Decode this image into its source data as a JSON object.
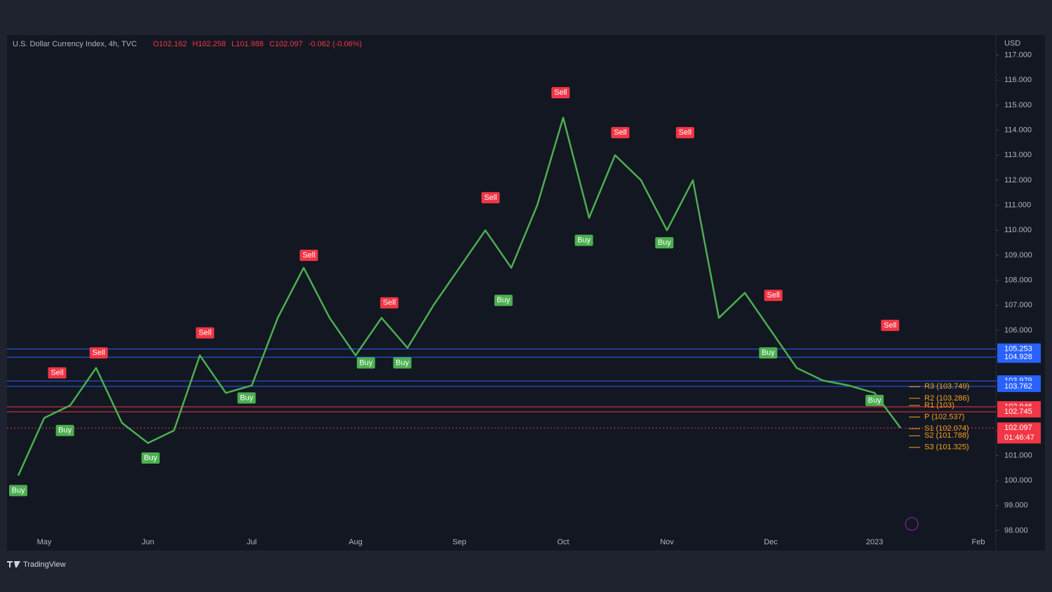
{
  "chart_data": {
    "type": "line",
    "title": "U.S. Dollar Currency Index, 4h, TVC",
    "ohlc": [
      "O102.162",
      "H102.258",
      "L101.988",
      "C102.097",
      "-0.062 (-0.06%)"
    ],
    "currency": "USD",
    "brand": "TradingView",
    "categories": [
      null,
      "May",
      null,
      null,
      null,
      "Jun",
      null,
      null,
      null,
      "Jul",
      null,
      null,
      null,
      "Aug",
      null,
      null,
      null,
      "Sep",
      null,
      null,
      null,
      "Oct",
      null,
      null,
      null,
      "Nov",
      null,
      null,
      null,
      "Dec",
      null,
      null,
      null,
      "2023",
      null,
      null,
      null,
      "Feb"
    ],
    "values": [
      100.2,
      102.5,
      103.0,
      104.5,
      102.3,
      101.5,
      102.0,
      105.0,
      103.5,
      103.8,
      106.5,
      108.5,
      106.5,
      105.0,
      106.5,
      105.3,
      107.0,
      108.5,
      110.0,
      108.5,
      111.0,
      114.5,
      110.5,
      113.0,
      112.0,
      110.0,
      112.0,
      106.5,
      107.5,
      106.0,
      104.5,
      104.0,
      103.8,
      103.5,
      102.1,
      null,
      null,
      null
    ],
    "color": "#4caf50",
    "ylim": [
      97.2,
      117.8
    ],
    "yticks": [
      {
        "value": 98,
        "label": "98.000"
      },
      {
        "value": 99,
        "label": "99.000"
      },
      {
        "value": 100,
        "label": "100.000"
      },
      {
        "value": 101,
        "label": "101.000"
      },
      {
        "value": 102,
        "label": "102.000"
      },
      {
        "value": 103,
        "label": "103.000"
      },
      {
        "value": 104,
        "label": "104.000"
      },
      {
        "value": 105,
        "label": "105.000"
      },
      {
        "value": 106,
        "label": "106.000"
      },
      {
        "value": 107,
        "label": "107.000"
      },
      {
        "value": 108,
        "label": "108.000"
      },
      {
        "value": 109,
        "label": "109.000"
      },
      {
        "value": 110,
        "label": "110.000"
      },
      {
        "value": 111,
        "label": "111.000"
      },
      {
        "value": 112,
        "label": "112.000"
      },
      {
        "value": 113,
        "label": "113.000"
      },
      {
        "value": 114,
        "label": "114.000"
      },
      {
        "value": 115,
        "label": "115.000"
      },
      {
        "value": 116,
        "label": "116.000"
      },
      {
        "value": 117,
        "label": "117.000"
      }
    ],
    "grid": false,
    "levels": [
      {
        "value": 105.253,
        "color": "#2962ff"
      },
      {
        "value": 104.928,
        "color": "#2962ff"
      },
      {
        "value": 103.979,
        "color": "#2962ff"
      },
      {
        "value": 103.762,
        "color": "#2962ff"
      },
      {
        "value": 102.946,
        "color": "#f23645"
      },
      {
        "value": 102.745,
        "color": "#f23645"
      },
      {
        "value": 102.097,
        "color": "#f23645",
        "countdown": "01:46:47"
      }
    ],
    "pivots": [
      {
        "label": "R3 (103.749)",
        "value": 103.749
      },
      {
        "label": "R2 (103.286)",
        "value": 103.286
      },
      {
        "label": "R1 (103)",
        "value": 103
      },
      {
        "label": "P (102.537)",
        "value": 102.537
      },
      {
        "label": "S1 (102.074)",
        "value": 102.074
      },
      {
        "label": "S2 (101.788)",
        "value": 101.788
      },
      {
        "label": "S3 (101.325)",
        "value": 101.325
      }
    ],
    "signals": [
      {
        "label": "Buy",
        "x": 0,
        "y": 99.6
      },
      {
        "label": "Sell",
        "x": 1.5,
        "y": 104.3
      },
      {
        "label": "Buy",
        "x": 1.8,
        "y": 102.0
      },
      {
        "label": "Sell",
        "x": 3.1,
        "y": 105.1
      },
      {
        "label": "Buy",
        "x": 5.1,
        "y": 100.9
      },
      {
        "label": "Sell",
        "x": 7.2,
        "y": 105.9
      },
      {
        "label": "Buy",
        "x": 8.8,
        "y": 103.3
      },
      {
        "label": "Sell",
        "x": 11.2,
        "y": 109.0
      },
      {
        "label": "Buy",
        "x": 13.4,
        "y": 104.7
      },
      {
        "label": "Sell",
        "x": 14.3,
        "y": 107.1
      },
      {
        "label": "Buy",
        "x": 14.8,
        "y": 104.7
      },
      {
        "label": "Sell",
        "x": 18.2,
        "y": 111.3
      },
      {
        "label": "Buy",
        "x": 18.7,
        "y": 107.2
      },
      {
        "label": "Sell",
        "x": 20.9,
        "y": 115.5
      },
      {
        "label": "Buy",
        "x": 21.8,
        "y": 109.6
      },
      {
        "label": "Sell",
        "x": 23.2,
        "y": 113.9
      },
      {
        "label": "Buy",
        "x": 24.9,
        "y": 109.5
      },
      {
        "label": "Sell",
        "x": 25.7,
        "y": 113.9
      },
      {
        "label": "Buy",
        "x": 28.9,
        "y": 105.1
      },
      {
        "label": "Sell",
        "x": 29.1,
        "y": 107.4
      },
      {
        "label": "Buy",
        "x": 33.0,
        "y": 103.2
      },
      {
        "label": "Sell",
        "x": 33.6,
        "y": 106.2
      }
    ]
  }
}
